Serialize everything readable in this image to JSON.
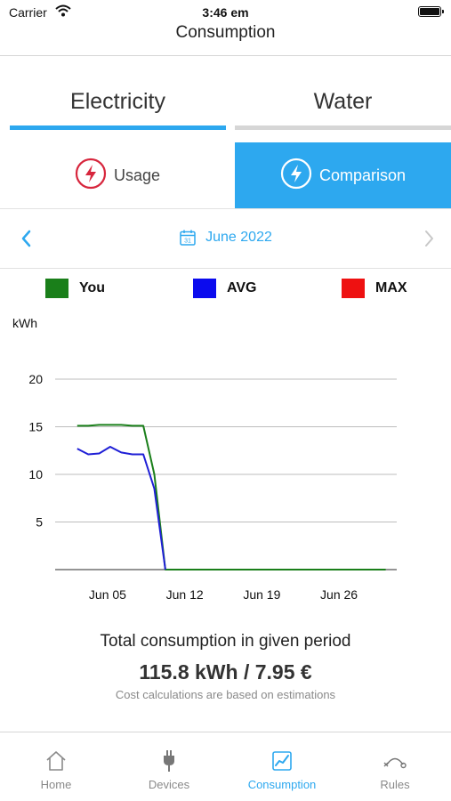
{
  "status_bar": {
    "carrier": "Carrier",
    "time": "3:46 em"
  },
  "nav": {
    "title": "Consumption"
  },
  "tabs": [
    {
      "label": "Electricity",
      "selected": true
    },
    {
      "label": "Water",
      "selected": false
    }
  ],
  "modes": [
    {
      "label": "Usage",
      "selected": false
    },
    {
      "label": "Comparison",
      "selected": true
    }
  ],
  "date_picker": {
    "label": "June 2022",
    "calendar_day": "31"
  },
  "chart_data": {
    "type": "line",
    "ylabel": "kWh",
    "ylim": [
      0,
      20
    ],
    "y_ticks": [
      "5",
      "10",
      "15",
      "20"
    ],
    "x_ticks": [
      "Jun 05",
      "Jun 12",
      "Jun 19",
      "Jun 26"
    ],
    "legend": [
      "You",
      "AVG",
      "MAX"
    ],
    "series": [
      {
        "name": "You",
        "color": "#1a7f1a",
        "points": [
          [
            2,
            15.1
          ],
          [
            3,
            15.1
          ],
          [
            4,
            15.2
          ],
          [
            5,
            15.2
          ],
          [
            6,
            15.2
          ],
          [
            7,
            15.1
          ],
          [
            8,
            15.1
          ],
          [
            9,
            10.0
          ],
          [
            10,
            0
          ],
          [
            30,
            0
          ]
        ]
      },
      {
        "name": "AVG",
        "color": "#1f1fd6",
        "points": [
          [
            2,
            12.7
          ],
          [
            3,
            12.1
          ],
          [
            4,
            12.2
          ],
          [
            5,
            12.9
          ],
          [
            6,
            12.3
          ],
          [
            7,
            12.1
          ],
          [
            8,
            12.1
          ],
          [
            9,
            8.5
          ],
          [
            10,
            0
          ]
        ]
      },
      {
        "name": "MAX",
        "color": "#ee1111",
        "points": []
      }
    ],
    "legend_colors": {
      "You": "#1a7f1a",
      "AVG": "#0b0bee",
      "MAX": "#ee1111"
    }
  },
  "summary": {
    "title": "Total consumption in given period",
    "value": "115.8 kWh / 7.95 €",
    "note": "Cost calculations are based on estimations"
  },
  "tab_bar": [
    {
      "label": "Home",
      "icon": "home-icon",
      "active": false
    },
    {
      "label": "Devices",
      "icon": "plug-icon",
      "active": false
    },
    {
      "label": "Consumption",
      "icon": "chart-icon",
      "active": true
    },
    {
      "label": "Rules",
      "icon": "rules-icon",
      "active": false
    }
  ],
  "colors": {
    "accent": "#2da8ef",
    "usage_icon": "#d7263d"
  }
}
